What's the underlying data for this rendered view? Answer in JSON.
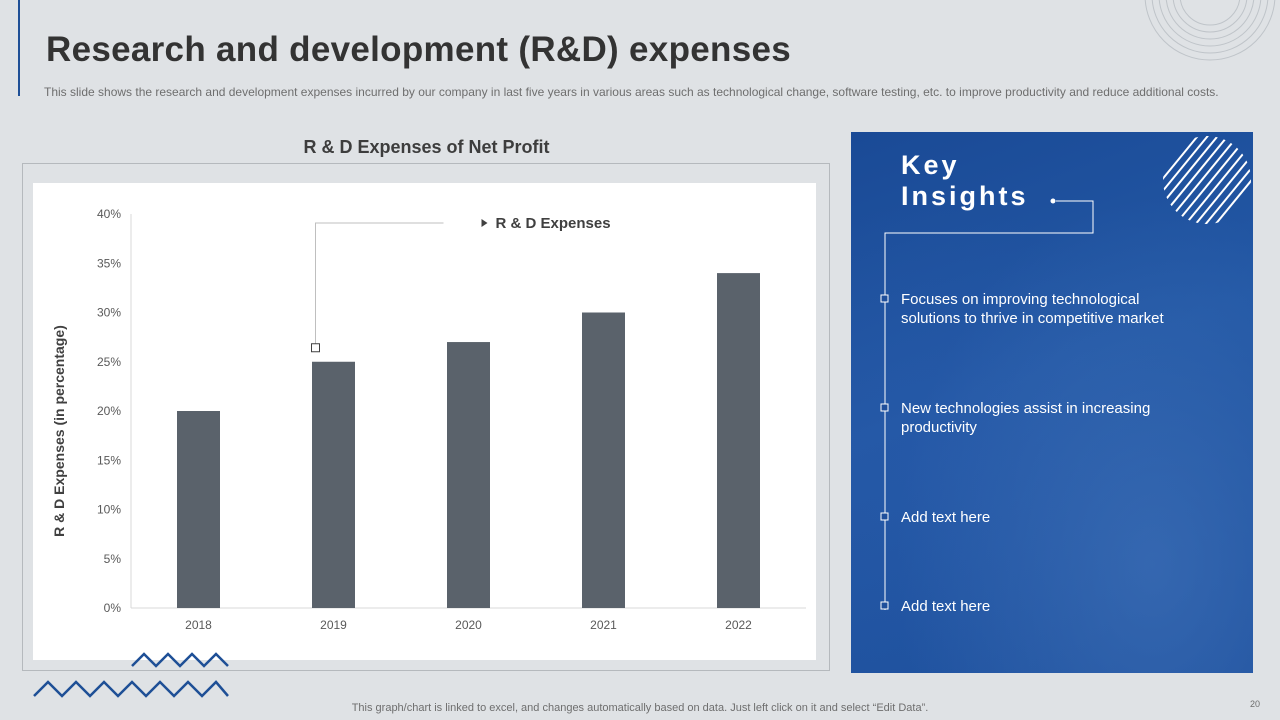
{
  "slide": {
    "title": "Research and development (R&D) expenses",
    "subtitle": "This slide shows the research and development  expenses incurred by our company in last five years in various  areas such as technological change, software testing, etc. to improve productivity and reduce additional costs.",
    "footer_note": "This graph/chart is linked to excel,  and changes automatically based on data. Just left click on it and select “Edit Data”.",
    "page_number": "20"
  },
  "chart_data": {
    "type": "bar",
    "title": "R & D Expenses of Net Profit",
    "xlabel": "",
    "ylabel": "R & D Expenses (in percentage)",
    "categories": [
      "2018",
      "2019",
      "2020",
      "2021",
      "2022"
    ],
    "values": [
      20,
      25,
      27,
      30,
      34
    ],
    "ylim": [
      0,
      40
    ],
    "yticks": [
      0,
      5,
      10,
      15,
      20,
      25,
      30,
      35,
      40
    ],
    "ytick_labels": [
      "0%",
      "5%",
      "10%",
      "15%",
      "20%",
      "25%",
      "30%",
      "35%",
      "40%"
    ],
    "series_name": "R & D Expenses",
    "grid": false,
    "annotation": {
      "text": "R & D Expenses",
      "points_to": "2019"
    }
  },
  "insights": {
    "title_line1": "Key",
    "title_line2": "Insights",
    "items": [
      "Focuses on improving technological solutions to thrive in competitive market",
      "New technologies assist in increasing productivity",
      "Add text here",
      "Add text here"
    ]
  },
  "colors": {
    "bar": "#5a626b",
    "accent": "#1e4f96",
    "panel": "#1f4f9b"
  }
}
